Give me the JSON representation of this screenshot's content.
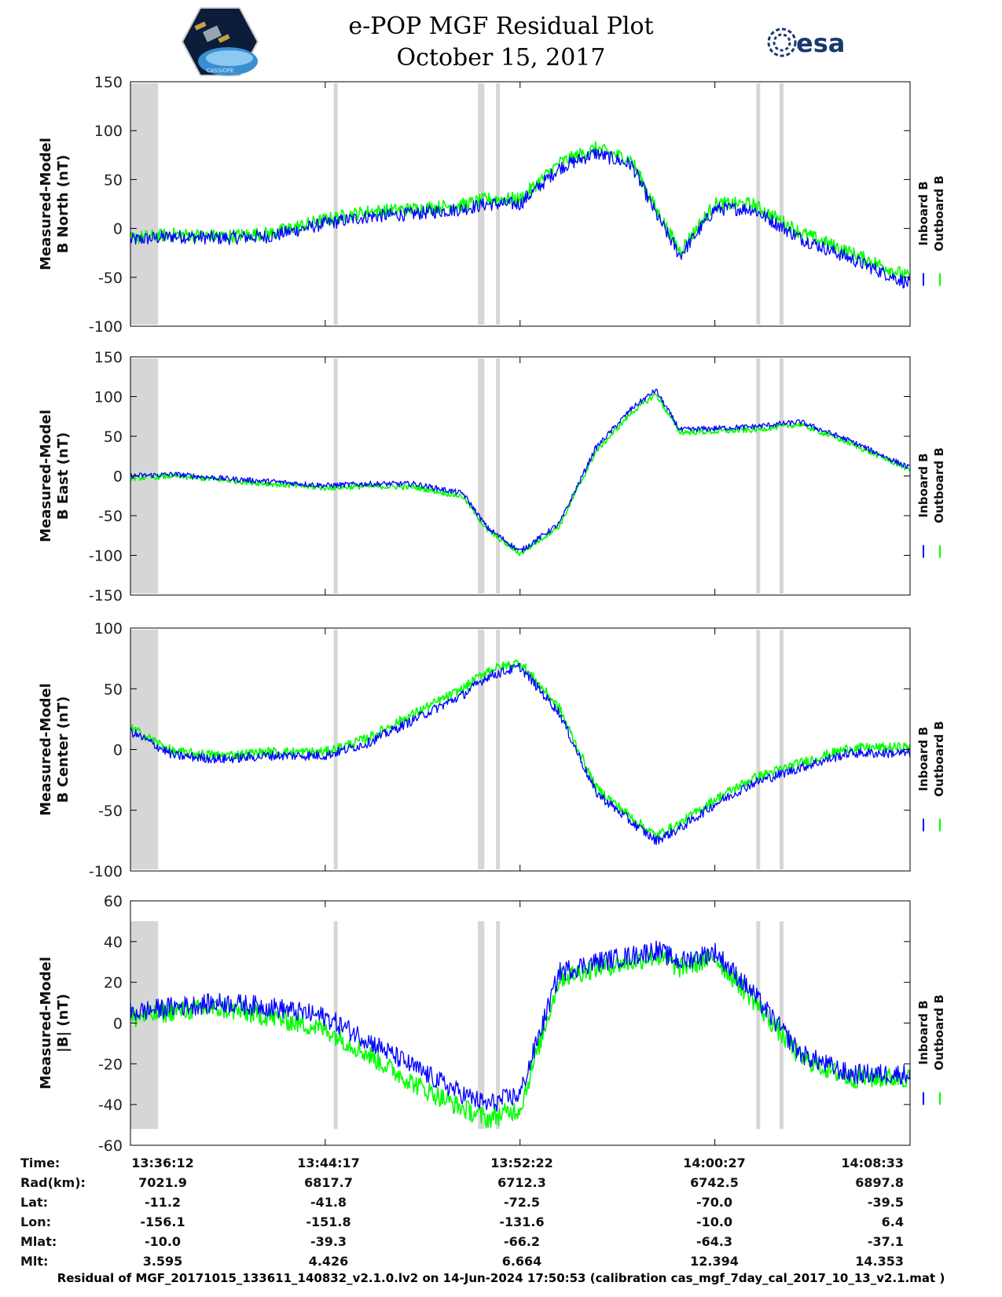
{
  "header": {
    "title": "e-POP MGF Residual Plot",
    "date": "October 15, 2017",
    "cassiope_logo_text": "CASSIOPE",
    "esa_logo_text": "esa"
  },
  "chart_data": [
    {
      "type": "line",
      "ylabel": [
        "Measured-Model",
        "B North (nT)"
      ],
      "ylim": [
        -100,
        150
      ],
      "yticks": [
        150,
        100,
        50,
        0,
        -50,
        -100
      ],
      "xlim": [
        "13:36:12",
        "14:08:33"
      ],
      "x": [
        "13:36:12",
        "13:38:00",
        "13:40:00",
        "13:42:00",
        "13:44:17",
        "13:46:00",
        "13:48:00",
        "13:50:00",
        "13:51:00",
        "13:52:22",
        "13:54:00",
        "13:55:30",
        "13:57:00",
        "13:58:00",
        "13:59:00",
        "14:00:27",
        "14:02:00",
        "14:04:00",
        "14:06:00",
        "14:08:33"
      ],
      "series": [
        {
          "name": "Inboard B",
          "color": "#0000ff",
          "values": [
            -12,
            -8,
            -10,
            -8,
            5,
            12,
            15,
            20,
            25,
            25,
            62,
            77,
            65,
            15,
            -28,
            20,
            20,
            -10,
            -30,
            -57
          ]
        },
        {
          "name": "Outboard B",
          "color": "#00ff00",
          "values": [
            -10,
            -6,
            -8,
            -5,
            9,
            17,
            20,
            24,
            30,
            30,
            67,
            82,
            70,
            20,
            -23,
            25,
            25,
            -4,
            -24,
            -50
          ]
        }
      ],
      "grey_bands": [
        "13:36:12-13:37:21",
        "13:44:43",
        "13:50:37-13:50:53",
        "13:51:27",
        "14:02:15",
        "14:03:13"
      ]
    },
    {
      "type": "line",
      "ylabel": [
        "Measured-Model",
        "B East (nT)"
      ],
      "ylim": [
        -150,
        150
      ],
      "yticks": [
        150,
        100,
        50,
        0,
        -50,
        -100,
        -150
      ],
      "xlim": [
        "13:36:12",
        "14:08:33"
      ],
      "x": [
        "13:36:12",
        "13:38:00",
        "13:40:00",
        "13:42:00",
        "13:44:17",
        "13:46:00",
        "13:48:00",
        "13:50:00",
        "13:51:00",
        "13:52:22",
        "13:54:00",
        "13:55:30",
        "13:57:00",
        "13:58:00",
        "13:59:00",
        "14:00:27",
        "14:02:00",
        "14:04:00",
        "14:06:00",
        "14:08:33"
      ],
      "series": [
        {
          "name": "Inboard B",
          "color": "#0000ff",
          "values": [
            0,
            2,
            -3,
            -7,
            -12,
            -10,
            -10,
            -22,
            -65,
            -95,
            -60,
            35,
            85,
            108,
            58,
            60,
            62,
            68,
            45,
            10
          ]
        },
        {
          "name": "Outboard B",
          "color": "#00ff00",
          "values": [
            -3,
            0,
            -5,
            -10,
            -15,
            -13,
            -14,
            -26,
            -68,
            -98,
            -63,
            30,
            80,
            103,
            55,
            56,
            58,
            65,
            42,
            8
          ]
        }
      ],
      "grey_bands": [
        "13:36:12-13:37:21",
        "13:44:43",
        "13:50:37-13:50:53",
        "13:51:27",
        "14:02:15",
        "14:03:13"
      ]
    },
    {
      "type": "line",
      "ylabel": [
        "Measured-Model",
        "B Center (nT)"
      ],
      "ylim": [
        -100,
        100
      ],
      "yticks": [
        100,
        50,
        0,
        -50,
        -100
      ],
      "xlim": [
        "13:36:12",
        "14:08:33"
      ],
      "x": [
        "13:36:12",
        "13:38:00",
        "13:40:00",
        "13:42:00",
        "13:44:17",
        "13:46:00",
        "13:48:00",
        "13:50:00",
        "13:51:00",
        "13:52:22",
        "13:54:00",
        "13:55:30",
        "13:57:00",
        "13:58:00",
        "13:59:00",
        "14:00:27",
        "14:02:00",
        "14:04:00",
        "14:06:00",
        "14:08:33"
      ],
      "series": [
        {
          "name": "Inboard B",
          "color": "#0000ff",
          "values": [
            15,
            -5,
            -8,
            -5,
            -5,
            5,
            25,
            45,
            60,
            68,
            30,
            -35,
            -60,
            -75,
            -65,
            -45,
            -28,
            -15,
            -3,
            -3
          ]
        },
        {
          "name": "Outboard B",
          "color": "#00ff00",
          "values": [
            18,
            -2,
            -5,
            -2,
            -2,
            9,
            30,
            50,
            65,
            72,
            34,
            -31,
            -56,
            -71,
            -61,
            -41,
            -24,
            -11,
            1,
            2
          ]
        }
      ],
      "grey_bands": [
        "13:36:12-13:37:21",
        "13:44:43",
        "13:50:37-13:50:53",
        "13:51:27",
        "14:02:15",
        "14:03:13"
      ]
    },
    {
      "type": "line",
      "ylabel": [
        "Measured-Model",
        "|B| (nT)"
      ],
      "ylim": [
        -60,
        60
      ],
      "yticks": [
        60,
        40,
        20,
        0,
        -20,
        -40,
        -60
      ],
      "xlim": [
        "13:36:12",
        "14:08:33"
      ],
      "x": [
        "13:36:12",
        "13:38:00",
        "13:40:00",
        "13:42:00",
        "13:44:17",
        "13:46:00",
        "13:48:00",
        "13:50:00",
        "13:51:00",
        "13:52:22",
        "13:54:00",
        "13:55:30",
        "13:57:00",
        "13:58:00",
        "13:59:00",
        "14:00:27",
        "14:02:00",
        "14:04:00",
        "14:06:00",
        "14:08:33"
      ],
      "series": [
        {
          "name": "Inboard B",
          "color": "#0000ff",
          "values": [
            5,
            8,
            10,
            8,
            3,
            -8,
            -22,
            -35,
            -40,
            -35,
            25,
            30,
            33,
            36,
            30,
            35,
            15,
            -15,
            -25,
            -25
          ]
        },
        {
          "name": "Outboard B",
          "color": "#00ff00",
          "values": [
            2,
            6,
            7,
            3,
            -3,
            -15,
            -30,
            -42,
            -47,
            -42,
            22,
            27,
            30,
            33,
            27,
            32,
            12,
            -17,
            -27,
            -27
          ]
        }
      ],
      "grey_bands": [
        "13:36:12-13:37:21",
        "13:44:43",
        "13:50:37-13:50:53",
        "13:51:27",
        "14:02:15",
        "14:03:13"
      ]
    }
  ],
  "legend": {
    "inboard": "Inboard B",
    "outboard": "Outboard B"
  },
  "ephemeris": {
    "row_labels": [
      "Time:",
      "Rad(km):",
      "Lat:",
      "Lon:",
      "Mlat:",
      "Mlt:"
    ],
    "columns": [
      [
        "13:36:12",
        "7021.9",
        "-11.2",
        "-156.1",
        "-10.0",
        "3.595"
      ],
      [
        "13:44:17",
        "6817.7",
        "-41.8",
        "-151.8",
        "-39.3",
        "4.426"
      ],
      [
        "13:52:22",
        "6712.3",
        "-72.5",
        "-131.6",
        "-66.2",
        "6.664"
      ],
      [
        "14:00:27",
        "6742.5",
        "-70.0",
        "-10.0",
        "-64.3",
        "12.394"
      ],
      [
        "14:08:33",
        "6897.8",
        "-39.5",
        "6.4",
        "-37.1",
        "14.353"
      ]
    ]
  },
  "footer": "Residual of MGF_20171015_133611_140832_v2.1.0.lv2 on 14-Jun-2024 17:50:53 (calibration cas_mgf_7day_cal_2017_10_13_v2.1.mat )"
}
